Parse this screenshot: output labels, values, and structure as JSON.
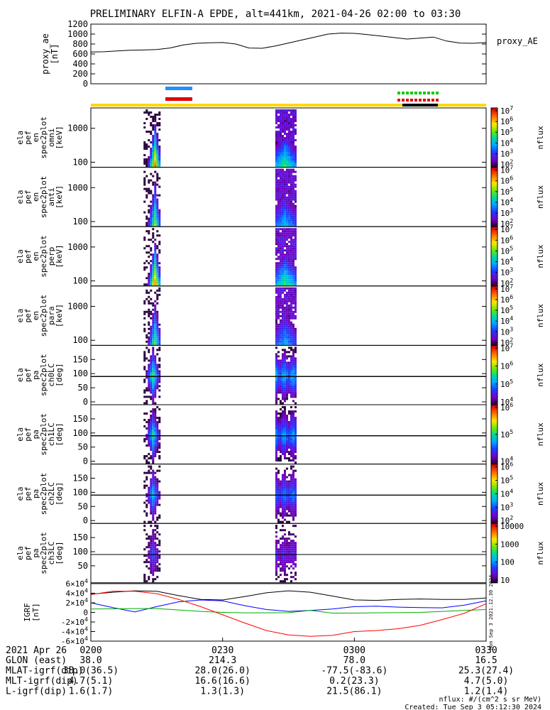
{
  "title": "PRELIMINARY ELFIN-A EPDE, alt=441km, 2021-04-26 02:00 to 03:30",
  "chart_data": [
    {
      "type": "line",
      "name_label": "proxy_AE",
      "ylabel_lines": [
        "proxy_ae",
        "[nT]"
      ],
      "ylim": [
        0,
        1200
      ],
      "yticks": [
        "0",
        "200",
        "400",
        "600",
        "800",
        "1000",
        "1200"
      ],
      "x": [
        0,
        3,
        6,
        9,
        12,
        15,
        18,
        21,
        24,
        27,
        30,
        33,
        36,
        39,
        42,
        45,
        48,
        51,
        54,
        57,
        60,
        63,
        66,
        69,
        72,
        75,
        78,
        81,
        84,
        87,
        90
      ],
      "values": [
        640,
        645,
        660,
        675,
        680,
        690,
        720,
        780,
        815,
        825,
        830,
        800,
        720,
        715,
        760,
        820,
        880,
        940,
        1000,
        1020,
        1015,
        990,
        960,
        930,
        900,
        920,
        940,
        860,
        820,
        815,
        830
      ],
      "legend_placement": "right"
    },
    {
      "type": "heatmap",
      "ylabel_lines": [
        "ela",
        "pef",
        "en",
        "spec2plot",
        "omni",
        "[keV]"
      ],
      "yticks": [
        "100",
        "1000"
      ],
      "colorbar_ticks": [
        "10^2",
        "10^3",
        "10^4",
        "10^5",
        "10^6",
        "10^7"
      ],
      "colorbar_label": "nflux"
    },
    {
      "type": "heatmap",
      "ylabel_lines": [
        "ela",
        "pef",
        "en",
        "spec2plot",
        "anti",
        "[keV]"
      ],
      "yticks": [
        "100",
        "1000"
      ],
      "colorbar_ticks": [
        "10^2",
        "10^3",
        "10^4",
        "10^5",
        "10^6",
        "10^7"
      ],
      "colorbar_label": "nflux"
    },
    {
      "type": "heatmap",
      "ylabel_lines": [
        "ela",
        "pef",
        "en",
        "spec2plot",
        "perp",
        "[keV]"
      ],
      "yticks": [
        "100",
        "1000"
      ],
      "colorbar_ticks": [
        "10^2",
        "10^3",
        "10^4",
        "10^5",
        "10^6",
        "10^7"
      ],
      "colorbar_label": "nflux"
    },
    {
      "type": "heatmap",
      "ylabel_lines": [
        "ela",
        "pef",
        "en",
        "spec2plot",
        "para",
        "[keV]"
      ],
      "yticks": [
        "100",
        "1000"
      ],
      "colorbar_ticks": [
        "10^2",
        "10^3",
        "10^4",
        "10^5",
        "10^6",
        "10^7"
      ],
      "colorbar_label": "nflux"
    },
    {
      "type": "heatmap",
      "ylabel_lines": [
        "ela",
        "pef",
        "pa",
        "spec2plot",
        "ch0LC",
        "[deg]"
      ],
      "yticks": [
        "0",
        "50",
        "100",
        "150"
      ],
      "colorbar_ticks": [
        "10^4",
        "10^5",
        "10^6",
        "10^7"
      ],
      "colorbar_label": "nflux"
    },
    {
      "type": "heatmap",
      "ylabel_lines": [
        "ela",
        "pef",
        "pa",
        "spec2plot",
        "ch1LC",
        "[deg]"
      ],
      "yticks": [
        "0",
        "50",
        "100",
        "150"
      ],
      "colorbar_ticks": [
        "10^4",
        "10^5",
        "10^6"
      ],
      "colorbar_label": "nflux"
    },
    {
      "type": "heatmap",
      "ylabel_lines": [
        "ela",
        "pef",
        "pa",
        "spec2plot",
        "ch2LC",
        "[deg]"
      ],
      "yticks": [
        "0",
        "50",
        "100",
        "150"
      ],
      "colorbar_ticks": [
        "10^2",
        "10^3",
        "10^4",
        "10^5",
        "10^6"
      ],
      "colorbar_label": "nflux"
    },
    {
      "type": "heatmap",
      "ylabel_lines": [
        "ela",
        "pef",
        "pa",
        "spec2plot",
        "ch3LC",
        "[deg]"
      ],
      "yticks": [
        "50",
        "100",
        "150"
      ],
      "colorbar_ticks": [
        "10",
        "100",
        "1000",
        "10000"
      ],
      "colorbar_label": "nflux"
    },
    {
      "type": "line",
      "ylabel_lines": [
        "IGRF",
        "[nT]"
      ],
      "ylim": [
        -60000,
        60000
      ],
      "yticks": [
        "-6×10^4",
        "-4×10^4",
        "-2×10^4",
        "0",
        "2×10^4",
        "4×10^4",
        "6×10^4"
      ],
      "x": [
        0,
        5,
        10,
        15,
        20,
        25,
        30,
        35,
        40,
        45,
        50,
        55,
        60,
        65,
        70,
        75,
        80,
        85,
        90
      ],
      "series": [
        {
          "color": "#000000",
          "values": [
            38000,
            42000,
            45000,
            44000,
            35000,
            27000,
            26000,
            33000,
            41000,
            45000,
            42000,
            34000,
            26000,
            25000,
            27000,
            28000,
            27000,
            27000,
            30000
          ]
        },
        {
          "color": "#0000ff",
          "values": [
            20000,
            10000,
            1000,
            12000,
            22000,
            26000,
            24000,
            14000,
            6000,
            2000,
            4000,
            7000,
            12000,
            13000,
            11000,
            10000,
            9500,
            15000,
            24000
          ]
        },
        {
          "color": "#00aa00",
          "values": [
            7000,
            7500,
            8000,
            8000,
            5000,
            2000,
            0,
            -1000,
            -1000,
            -500,
            4000,
            -1500,
            -1500,
            -1000,
            -500,
            0,
            2000,
            4000,
            6000
          ]
        },
        {
          "color": "#ff0000",
          "values": [
            37000,
            44000,
            44000,
            39000,
            27000,
            12000,
            -5000,
            -22000,
            -38000,
            -47000,
            -50000,
            -48000,
            -40000,
            -38000,
            -34000,
            -27000,
            -15000,
            -2000,
            18000
          ]
        }
      ],
      "side_text": "Mon Sep 3 2021.12.30 2024"
    }
  ],
  "time_axis": {
    "start_label": "2021 Apr 26",
    "ticks": [
      "0200",
      "0230",
      "0300",
      "0330"
    ],
    "rows": [
      {
        "label": "GLON (east)",
        "values": [
          "38.0",
          "214.3",
          "78.0",
          "16.5"
        ]
      },
      {
        "label": "MLAT-igrf(dip)",
        "values": [
          "38.0(36.5)",
          "28.0(26.0)",
          "-77.5(-83.6)",
          "25.3(27.4)"
        ]
      },
      {
        "label": "MLT-igrf(dip)",
        "values": [
          "4.7(5.1)",
          "16.6(16.6)",
          "0.2(23.3)",
          "4.7(5.0)"
        ]
      },
      {
        "label": "L-igrf(dip)",
        "values": [
          "1.6(1.7)",
          "1.3(1.3)",
          "21.5(86.1)",
          "1.2(1.4)"
        ]
      }
    ]
  },
  "footer": {
    "units_note": "nflux: #/(cm^2 s sr MeV)",
    "created": "Created: Tue Sep  3 05:12:30 2024"
  },
  "colors": {
    "bar_blue": "#1e90ff",
    "bar_red": "#e00000",
    "bar_green": "#00cc00",
    "yellow_line": "#ffd800"
  }
}
